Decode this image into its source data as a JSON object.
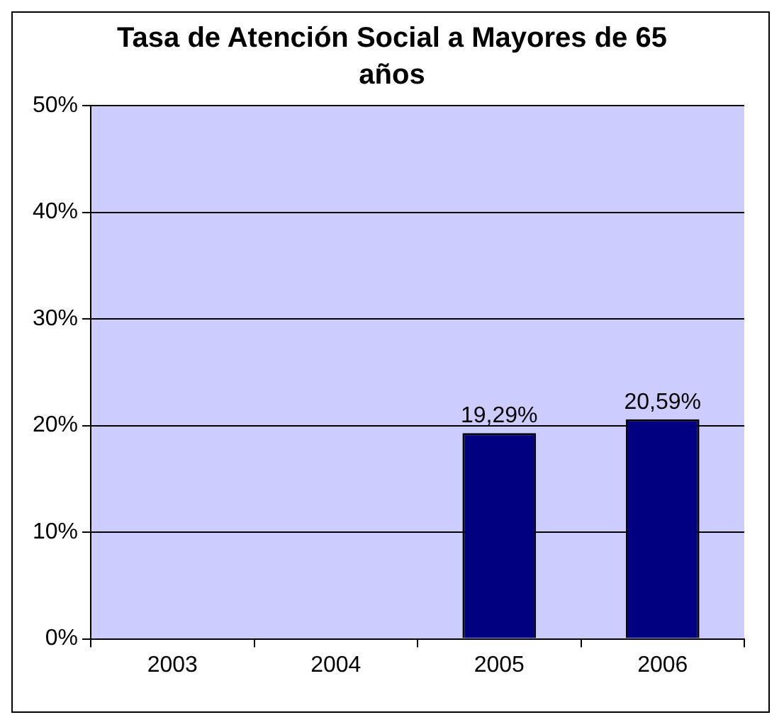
{
  "chart_data": {
    "type": "bar",
    "title": "Tasa de Atención Social a Mayores de 65 años",
    "categories": [
      "2003",
      "2004",
      "2005",
      "2006"
    ],
    "values": [
      null,
      null,
      19.29,
      20.59
    ],
    "value_labels": [
      null,
      null,
      "19,29%",
      "20,59%"
    ],
    "color": "#000080",
    "ylim": [
      0,
      50
    ],
    "yticks": [
      {
        "value": 0,
        "label": "0%"
      },
      {
        "value": 10,
        "label": "10%"
      },
      {
        "value": 20,
        "label": "20%"
      },
      {
        "value": 30,
        "label": "30%"
      },
      {
        "value": 40,
        "label": "40%"
      },
      {
        "value": 50,
        "label": "50%"
      }
    ],
    "grid": "y",
    "legend": false
  }
}
